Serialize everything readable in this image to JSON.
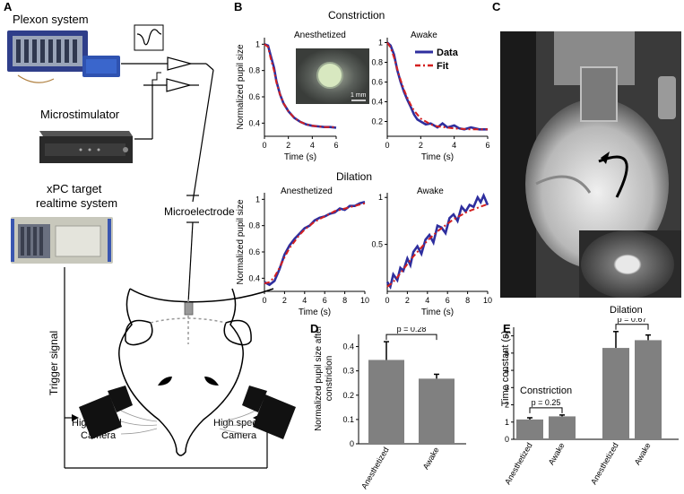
{
  "panels": {
    "A": "A",
    "B": "B",
    "C": "C",
    "D": "D",
    "E": "E"
  },
  "panelA": {
    "plexon": "Plexon system",
    "microstim": "Microstimulator",
    "xpc_line1": "xPC target",
    "xpc_line2": "realtime system",
    "microelectrode": "Microelectrode",
    "trigger": "Trigger signal",
    "camera_left_1": "High speed",
    "camera_left_2": "Camera",
    "camera_right_1": "High speed",
    "camera_right_2": "Camera"
  },
  "panelB": {
    "constriction": "Constriction",
    "dilation": "Dilation",
    "anesthetized": "Anesthetized",
    "awake": "Awake",
    "ylabel": "Normalized pupil size",
    "xlabel": "Time (s)",
    "legend_data": "Data",
    "legend_fit": "Fit",
    "scalebar": "1 mm"
  },
  "colors": {
    "data": "#2e2e9e",
    "fit": "#d42020",
    "bar": "#808080"
  },
  "chart_data": [
    {
      "type": "line",
      "panel": "B",
      "title": "Anesthetized",
      "row": "Constriction",
      "xlabel": "Time (s)",
      "ylabel": "Normalized pupil size",
      "xlim": [
        0,
        6
      ],
      "ylim": [
        0.3,
        1.05
      ],
      "xticks": [
        0,
        2,
        4,
        6
      ],
      "yticks": [
        0.4,
        0.6,
        0.8,
        1
      ],
      "series": [
        {
          "name": "Data",
          "x": [
            0,
            0.3,
            0.5,
            0.8,
            1,
            1.3,
            1.6,
            2,
            2.5,
            3,
            3.5,
            4,
            4.5,
            5,
            5.5,
            6
          ],
          "y": [
            1,
            0.99,
            0.92,
            0.82,
            0.72,
            0.62,
            0.55,
            0.49,
            0.44,
            0.41,
            0.39,
            0.38,
            0.375,
            0.37,
            0.37,
            0.365
          ]
        },
        {
          "name": "Fit",
          "x": [
            0,
            0.3,
            0.5,
            0.8,
            1,
            1.3,
            1.6,
            2,
            2.5,
            3,
            3.5,
            4,
            4.5,
            5,
            5.5,
            6
          ],
          "y": [
            1,
            0.98,
            0.9,
            0.8,
            0.71,
            0.62,
            0.55,
            0.49,
            0.44,
            0.41,
            0.39,
            0.38,
            0.375,
            0.37,
            0.37,
            0.37
          ]
        }
      ]
    },
    {
      "type": "line",
      "panel": "B",
      "title": "Awake",
      "row": "Constriction",
      "xlabel": "Time (s)",
      "ylabel": "",
      "xlim": [
        0,
        6
      ],
      "ylim": [
        0.05,
        1.05
      ],
      "xticks": [
        0,
        2,
        4,
        6
      ],
      "yticks": [
        0.2,
        0.4,
        0.6,
        0.8,
        1
      ],
      "series": [
        {
          "name": "Data",
          "x": [
            0,
            0.2,
            0.4,
            0.6,
            0.8,
            1,
            1.2,
            1.4,
            1.6,
            1.8,
            2,
            2.3,
            2.6,
            3,
            3.3,
            3.6,
            4,
            4.3,
            4.6,
            5,
            5.5,
            6
          ],
          "y": [
            1,
            0.97,
            0.88,
            0.72,
            0.6,
            0.5,
            0.42,
            0.35,
            0.27,
            0.22,
            0.2,
            0.17,
            0.18,
            0.14,
            0.18,
            0.14,
            0.16,
            0.13,
            0.12,
            0.14,
            0.12,
            0.12
          ]
        },
        {
          "name": "Fit",
          "x": [
            0,
            0.2,
            0.4,
            0.6,
            0.8,
            1,
            1.2,
            1.4,
            1.6,
            1.8,
            2,
            2.3,
            2.6,
            3,
            3.5,
            4,
            4.5,
            5,
            5.5,
            6
          ],
          "y": [
            1,
            0.95,
            0.85,
            0.73,
            0.62,
            0.52,
            0.44,
            0.37,
            0.31,
            0.27,
            0.23,
            0.2,
            0.17,
            0.15,
            0.14,
            0.13,
            0.125,
            0.12,
            0.12,
            0.12
          ]
        }
      ]
    },
    {
      "type": "line",
      "panel": "B",
      "title": "Anesthetized",
      "row": "Dilation",
      "xlabel": "Time (s)",
      "ylabel": "Normalized pupil size",
      "xlim": [
        0,
        10
      ],
      "ylim": [
        0.3,
        1.05
      ],
      "xticks": [
        0,
        2,
        4,
        6,
        8,
        10
      ],
      "yticks": [
        0.4,
        0.6,
        0.8,
        1
      ],
      "series": [
        {
          "name": "Data",
          "x": [
            0,
            0.5,
            1,
            1.5,
            2,
            2.5,
            3,
            3.5,
            4,
            4.5,
            5,
            5.5,
            6,
            6.5,
            7,
            7.5,
            8,
            8.5,
            9,
            9.5,
            10
          ],
          "y": [
            0.37,
            0.35,
            0.38,
            0.47,
            0.58,
            0.65,
            0.7,
            0.74,
            0.78,
            0.8,
            0.84,
            0.86,
            0.87,
            0.89,
            0.9,
            0.93,
            0.92,
            0.95,
            0.95,
            0.97,
            0.98
          ]
        },
        {
          "name": "Fit",
          "x": [
            0,
            0.5,
            1,
            1.5,
            2,
            2.5,
            3,
            3.5,
            4,
            4.5,
            5,
            5.5,
            6,
            6.5,
            7,
            7.5,
            8,
            8.5,
            9,
            9.5,
            10
          ],
          "y": [
            0.36,
            0.37,
            0.41,
            0.48,
            0.56,
            0.63,
            0.68,
            0.73,
            0.77,
            0.8,
            0.83,
            0.85,
            0.87,
            0.89,
            0.91,
            0.92,
            0.93,
            0.94,
            0.95,
            0.96,
            0.97
          ]
        }
      ]
    },
    {
      "type": "line",
      "panel": "B",
      "title": "Awake",
      "row": "Dilation",
      "xlabel": "Time (s)",
      "ylabel": "",
      "xlim": [
        0,
        10
      ],
      "ylim": [
        0,
        1.05
      ],
      "xticks": [
        0,
        2,
        4,
        6,
        8,
        10
      ],
      "yticks": [
        0.5,
        1
      ],
      "series": [
        {
          "name": "Data",
          "x": [
            0,
            0.3,
            0.6,
            1,
            1.3,
            1.6,
            2,
            2.3,
            2.6,
            3,
            3.4,
            3.8,
            4.2,
            4.6,
            5,
            5.4,
            5.8,
            6.2,
            6.6,
            7,
            7.4,
            7.8,
            8.2,
            8.6,
            9,
            9.3,
            9.6,
            10
          ],
          "y": [
            0.1,
            0.05,
            0.18,
            0.12,
            0.25,
            0.22,
            0.35,
            0.28,
            0.42,
            0.48,
            0.4,
            0.55,
            0.6,
            0.52,
            0.7,
            0.68,
            0.62,
            0.78,
            0.82,
            0.75,
            0.9,
            0.85,
            0.92,
            0.9,
            1.0,
            0.95,
            1.02,
            0.92
          ]
        },
        {
          "name": "Fit",
          "x": [
            0,
            0.5,
            1,
            1.5,
            2,
            2.5,
            3,
            3.5,
            4,
            4.5,
            5,
            5.5,
            6,
            6.5,
            7,
            7.5,
            8,
            8.5,
            9,
            9.5,
            10
          ],
          "y": [
            0.05,
            0.09,
            0.15,
            0.22,
            0.29,
            0.36,
            0.42,
            0.48,
            0.54,
            0.59,
            0.64,
            0.68,
            0.72,
            0.76,
            0.79,
            0.82,
            0.85,
            0.87,
            0.89,
            0.91,
            0.93
          ]
        }
      ]
    },
    {
      "type": "bar",
      "panel": "D",
      "categories": [
        "Anesthetized",
        "Awake"
      ],
      "values": [
        0.345,
        0.268
      ],
      "errors": [
        0.075,
        0.018
      ],
      "ylabel": "Normalized pupil size after constriction",
      "ylim": [
        0,
        0.45
      ],
      "yticks": [
        0,
        0.1,
        0.2,
        0.3,
        0.4
      ],
      "annotation": "p = 0.28"
    },
    {
      "type": "bar",
      "panel": "E",
      "categories": [
        "Anesthetized",
        "Awake",
        "Anesthetized",
        "Awake"
      ],
      "values": [
        1.15,
        1.33,
        5.3,
        5.75
      ],
      "errors": [
        0.1,
        0.08,
        0.95,
        0.3
      ],
      "groups": [
        "Constriction",
        "Dilation"
      ],
      "ylabel": "Time constant (s)",
      "ylim": [
        0,
        6.5
      ],
      "yticks": [
        0,
        1,
        2,
        3,
        4,
        5,
        6
      ],
      "annotations": [
        "p = 0.25",
        "p = 0.67"
      ]
    }
  ]
}
